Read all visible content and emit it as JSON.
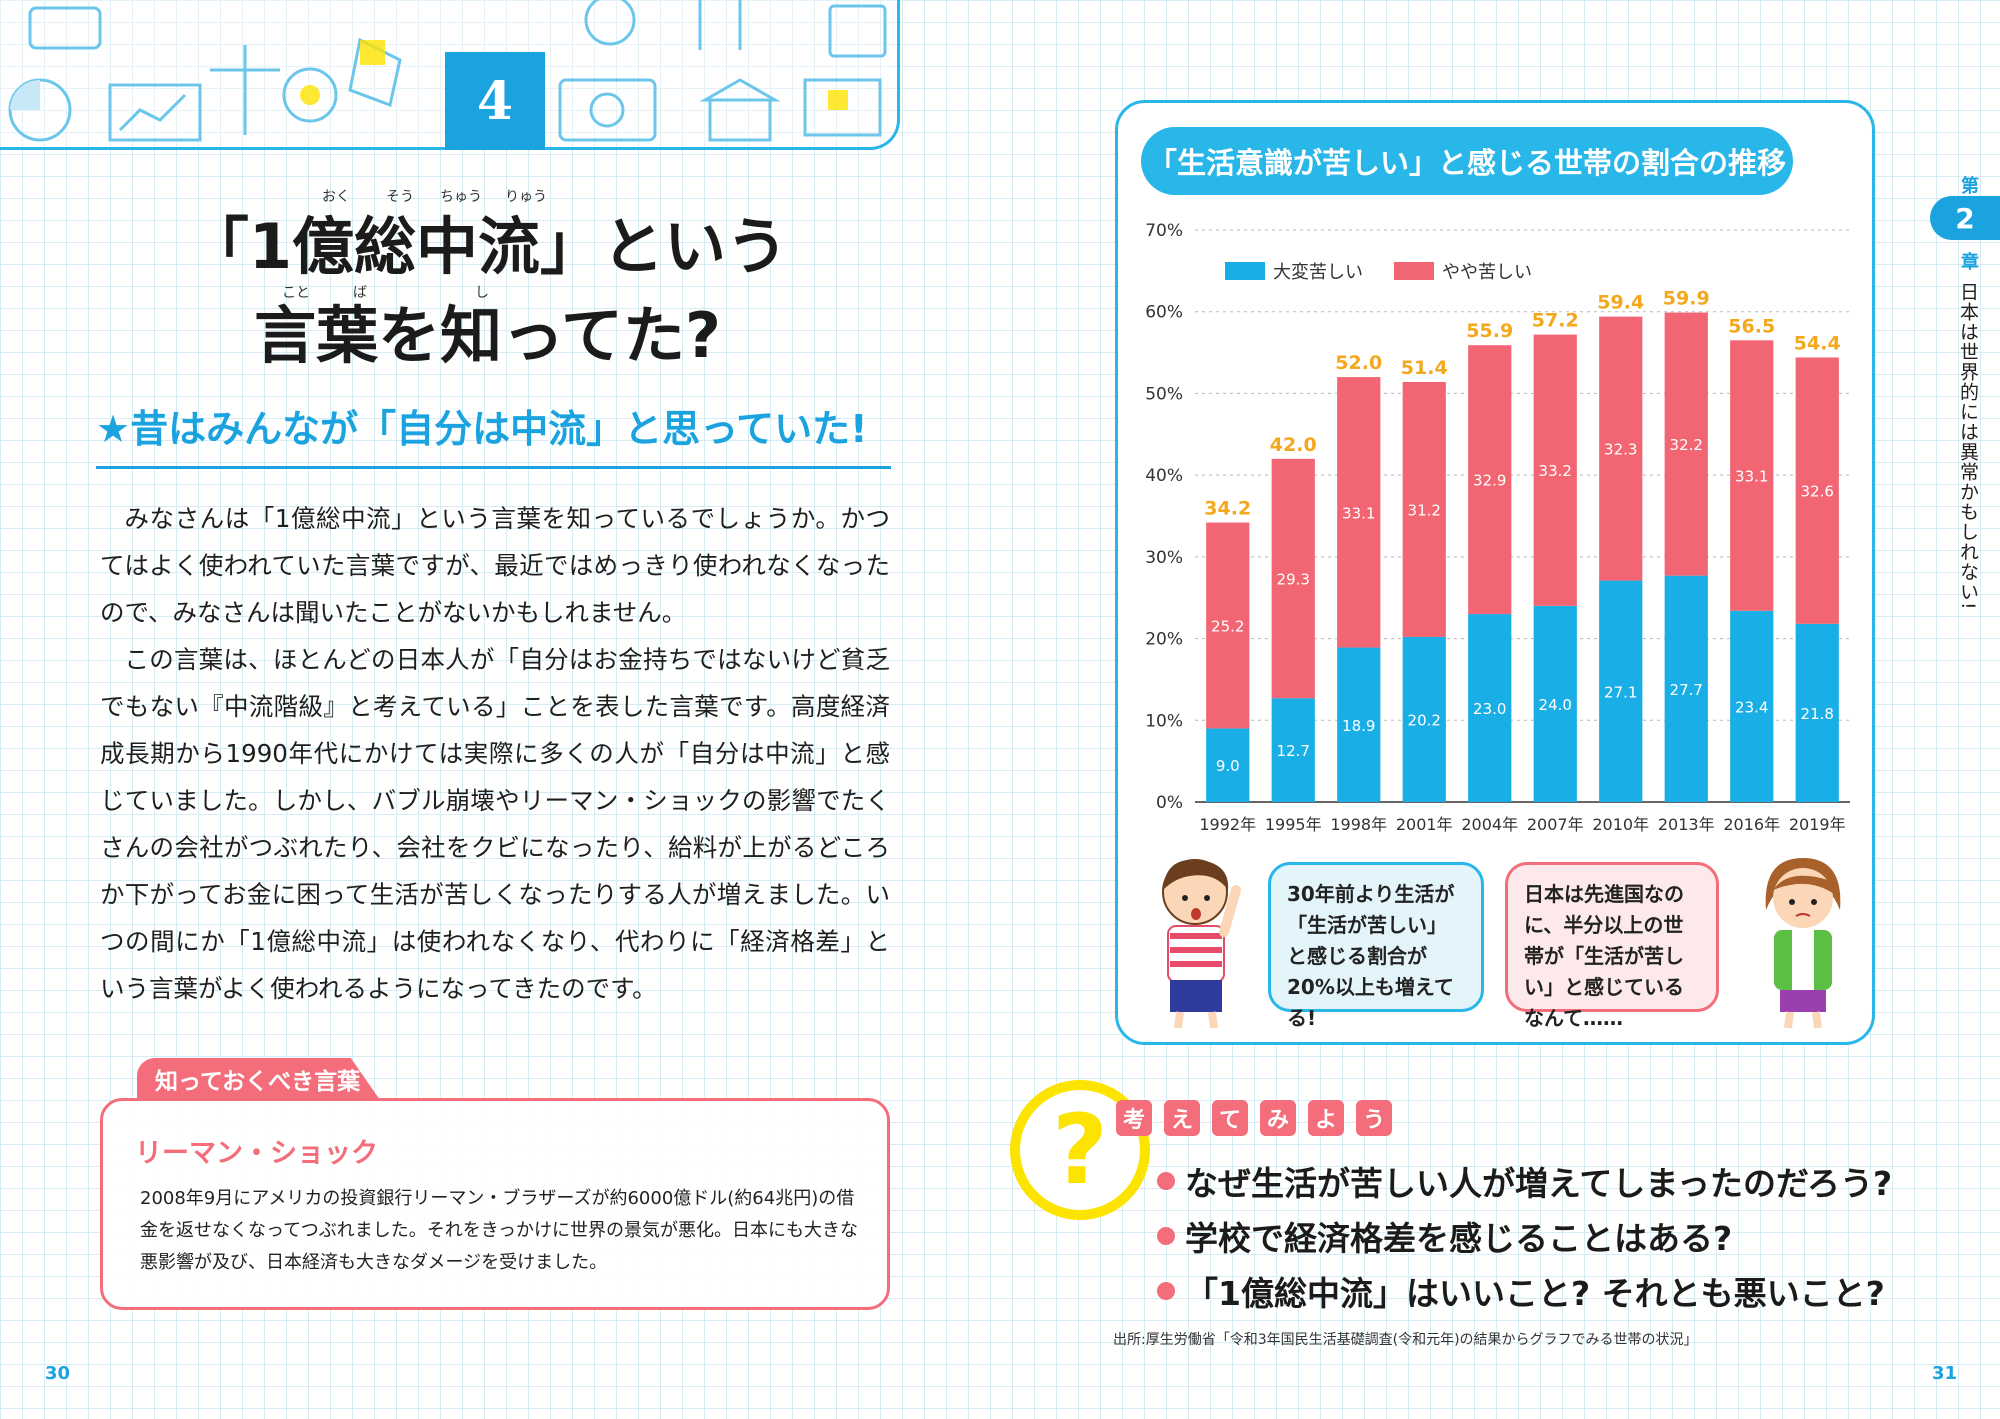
{
  "header": {
    "chapter_number": "4"
  },
  "title": {
    "line1": "「1億総中流」という",
    "line2": "言葉を知ってた?",
    "ruby": {
      "oku": "おく",
      "sou": "そう",
      "chuu": "ちゅう",
      "ryuu": "りゅう",
      "koto": "こと",
      "ba": "ば",
      "shi": "し"
    }
  },
  "subheading": "★昔はみんなが「自分は中流」と思っていた!",
  "body": {
    "paragraphs": [
      "みなさんは「1億総中流」という言葉を知っているでしょうか。かつてはよく使われていた言葉ですが、最近ではめっきり使われなくなったので、みなさんは聞いたことがないかもしれません。",
      "この言葉は、ほとんどの日本人が「自分はお金持ちではないけど貧乏でもない『中流階級』と考えている」ことを表した言葉です。高度経済成長期から1990年代にかけては実際に多くの人が「自分は中流」と感じていました。しかし、バブル崩壊やリーマン・ショックの影響でたくさんの会社がつぶれたり、会社をクビになったり、給料が上がるどころか下がってお金に困って生活が苦しくなったりする人が増えました。いつの間にか「1億総中流」は使われなくなり、代わりに「経済格差」という言葉がよく使われるようになってきたのです。"
    ]
  },
  "vocab": {
    "tab_label": "知っておくべき言葉",
    "term": "リーマン・ショック",
    "definition": "2008年9月にアメリカの投資銀行リーマン・ブラザーズが約6000億ドル(約64兆円)の借金を返せなくなってつぶれました。それをきっかけに世界の景気が悪化。日本にも大きな悪影響が及び、日本経済も大きなダメージを受けました。"
  },
  "page_numbers": {
    "left": "30",
    "right": "31"
  },
  "chart_title": "「生活意識が苦しい」と感じる世帯の割合の推移",
  "chart_data": {
    "type": "bar",
    "stacked": true,
    "categories": [
      "1992年",
      "1995年",
      "1998年",
      "2001年",
      "2004年",
      "2007年",
      "2010年",
      "2013年",
      "2016年",
      "2019年"
    ],
    "series": [
      {
        "name": "大変苦しい",
        "color": "#19aee6",
        "values": [
          9.0,
          12.7,
          18.9,
          20.2,
          23.0,
          24.0,
          27.1,
          27.7,
          23.4,
          21.8
        ]
      },
      {
        "name": "やや苦しい",
        "color": "#f26673",
        "values": [
          25.2,
          29.3,
          33.1,
          31.2,
          32.9,
          33.2,
          32.3,
          32.2,
          33.1,
          32.6
        ]
      }
    ],
    "totals": [
      34.2,
      42.0,
      52.0,
      51.4,
      55.9,
      57.2,
      59.4,
      59.9,
      56.5,
      54.4
    ],
    "total_color": "#f3a81d",
    "ylim": [
      0,
      70
    ],
    "yticks": [
      0,
      10,
      20,
      30,
      40,
      50,
      60,
      70
    ],
    "ytick_labels": [
      "0%",
      "10%",
      "20%",
      "30%",
      "40%",
      "50%",
      "60%",
      "70%"
    ],
    "grid": true,
    "legend_position": "top-left"
  },
  "bubbles": {
    "boy": "30年前より生活が「生活が苦しい」と感じる割合が20%以上も増えてる!",
    "girl": "日本は先進国なのに、半分以上の世帯が「生活が苦しい」と感じているなんて……"
  },
  "chapter_side": {
    "top": "第",
    "number": "2",
    "bottom": "章",
    "title": "日本は世界的には異常かもしれない!"
  },
  "think": {
    "chars": [
      "考",
      "え",
      "て",
      "み",
      "よ",
      "う"
    ],
    "questions": [
      "なぜ生活が苦しい人が増えてしまったのだろう?",
      "学校で経済格差を感じることはある?",
      "「1億総中流」はいいこと? それとも悪いこと?"
    ]
  },
  "source_note": "出所:厚生労働省「令和3年国民生活基礎調査(令和元年)の結果からグラフでみる世帯の状況」"
}
